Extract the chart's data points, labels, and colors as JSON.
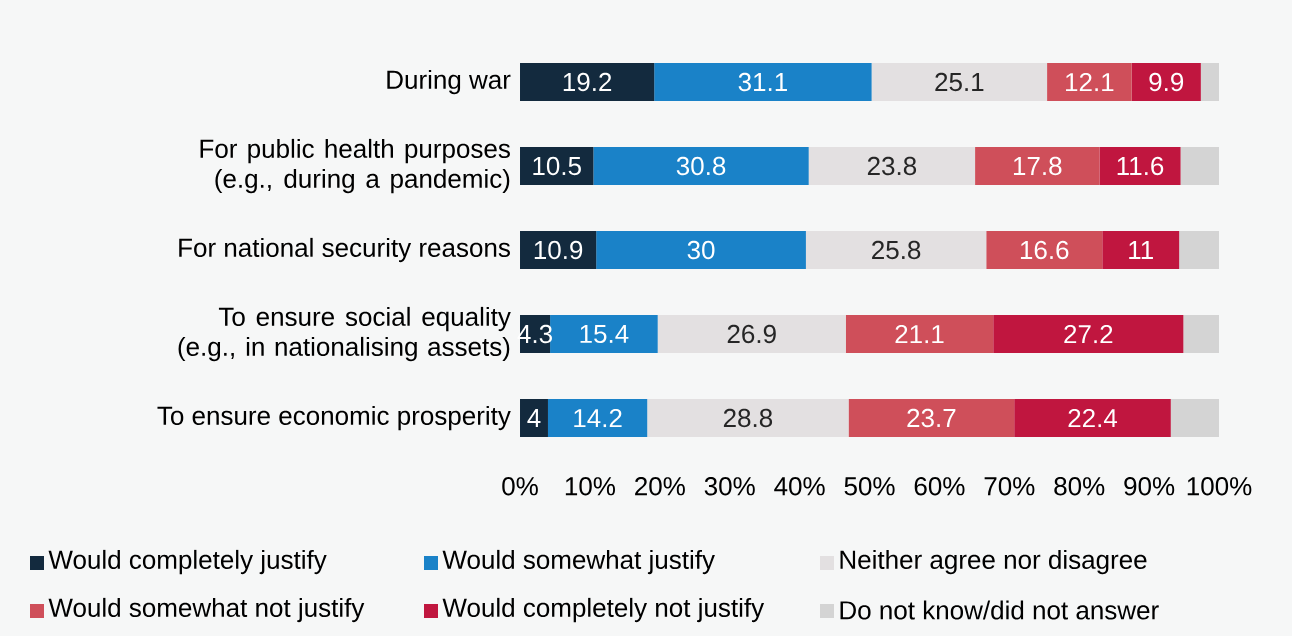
{
  "chart_data": {
    "type": "bar",
    "orientation": "horizontal",
    "stacked": true,
    "categories": [
      "During war",
      "For public health purposes (e.g., during a pandemic)",
      "For national security reasons",
      "To ensure social equality (e.g., in nationalising assets)",
      "To ensure economic prosperity"
    ],
    "series": [
      {
        "name": "Would completely justify",
        "color": "#132a3e",
        "values": [
          19.2,
          10.5,
          10.9,
          4.3,
          4
        ],
        "value_labels": [
          "19.2",
          "10.5",
          "10.9",
          "4.3",
          "4"
        ]
      },
      {
        "name": "Would somewhat justify",
        "color": "#1a82c8",
        "values": [
          31.1,
          30.8,
          30,
          15.4,
          14.2
        ],
        "value_labels": [
          "31.1",
          "30.8",
          "30",
          "15.4",
          "14.2"
        ]
      },
      {
        "name": "Neither agree nor disagree",
        "color": "#e3e0e1",
        "values": [
          25.1,
          23.8,
          25.8,
          26.9,
          28.8
        ],
        "value_labels": [
          "25.1",
          "23.8",
          "25.8",
          "26.9",
          "28.8"
        ]
      },
      {
        "name": "Would somewhat not justify",
        "color": "#cf4f5a",
        "values": [
          12.1,
          17.8,
          16.6,
          21.1,
          23.7
        ],
        "value_labels": [
          "12.1",
          "17.8",
          "16.6",
          "21.1",
          "23.7"
        ]
      },
      {
        "name": "Would completely not justify",
        "color": "#c0163f",
        "values": [
          9.9,
          11.6,
          11,
          27.2,
          22.4
        ],
        "value_labels": [
          "9.9",
          "11.6",
          "11",
          "27.2",
          "22.4"
        ]
      },
      {
        "name": "Do not know/did not answer",
        "color": "#d4d4d4",
        "values": [
          2.6,
          5.5,
          5.7,
          5.1,
          6.9
        ]
      }
    ],
    "xlim": [
      0,
      100
    ],
    "xticks": [
      {
        "value": 0,
        "label": "0%"
      },
      {
        "value": 10,
        "label": "10%"
      },
      {
        "value": 20,
        "label": "20%"
      },
      {
        "value": 30,
        "label": "30%"
      },
      {
        "value": 40,
        "label": "40%"
      },
      {
        "value": 50,
        "label": "50%"
      },
      {
        "value": 60,
        "label": "60%"
      },
      {
        "value": 70,
        "label": "70%"
      },
      {
        "value": 80,
        "label": "80%"
      },
      {
        "value": 90,
        "label": "90%"
      },
      {
        "value": 100,
        "label": "100%"
      }
    ],
    "legend": "bottom",
    "grid": false
  }
}
